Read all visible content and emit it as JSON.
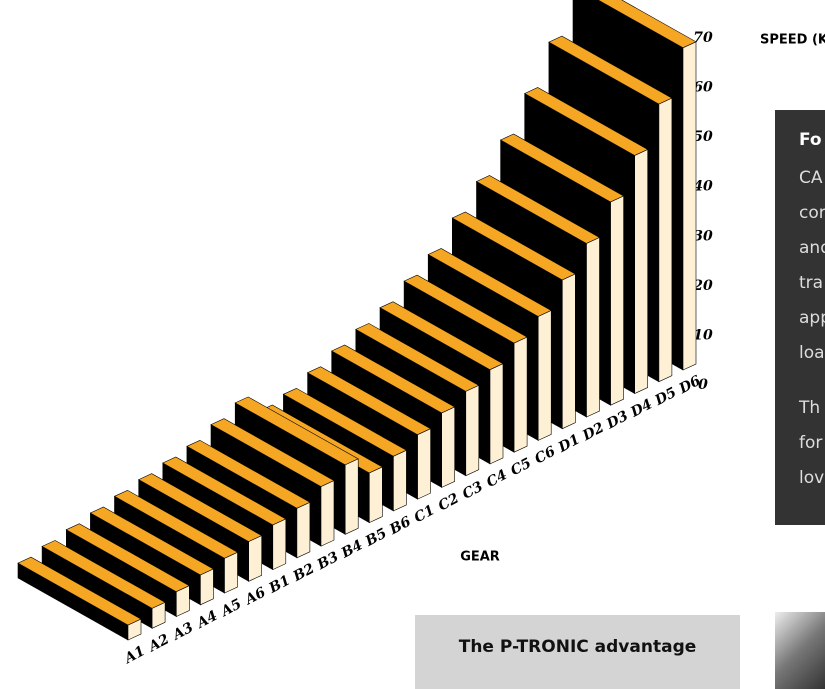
{
  "chart_data": {
    "type": "bar",
    "y_label": "SPEED (KPH)",
    "x_label": "GEAR",
    "categories": [
      "A1",
      "A2",
      "A3",
      "A4",
      "A5",
      "A6",
      "B1",
      "B2",
      "B3",
      "B4",
      "B5",
      "B6",
      "C1",
      "C2",
      "C3",
      "C4",
      "C5",
      "C6",
      "D1",
      "D2",
      "D3",
      "D4",
      "D5",
      "D6"
    ],
    "values": [
      3,
      4,
      5,
      6,
      7,
      8,
      9,
      10,
      12,
      14,
      10,
      11,
      13,
      15,
      17,
      19,
      22,
      25,
      30,
      35,
      41,
      48,
      56,
      65
    ],
    "color": "#f5a623",
    "ylim": [
      0,
      70
    ],
    "yticks": [
      0,
      10,
      20,
      30,
      40,
      50,
      60,
      70
    ]
  },
  "side_panel": {
    "heading": "Fo",
    "lines": [
      "CA",
      "cor",
      "and",
      "tra",
      "app",
      "loa"
    ],
    "lines2": [
      "Th",
      "for",
      "lov"
    ]
  },
  "promo": {
    "title": "The P-TRONIC advantage"
  }
}
